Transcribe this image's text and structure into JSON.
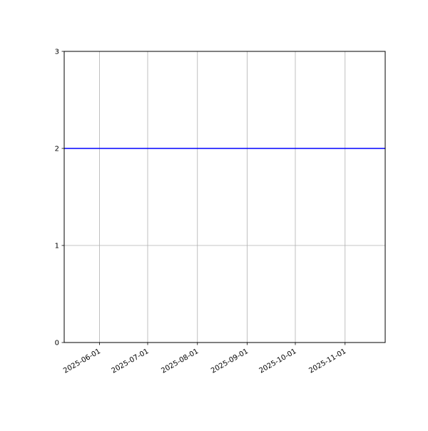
{
  "chart_data": {
    "type": "line",
    "title": "",
    "xlabel": "",
    "ylabel": "",
    "xlim": [
      "2025-05-10",
      "2025-11-26"
    ],
    "ylim": [
      0,
      3
    ],
    "grid": true,
    "x_ticks": [
      "2025-06-01",
      "2025-07-01",
      "2025-08-01",
      "2025-09-01",
      "2025-10-01",
      "2025-11-01"
    ],
    "y_ticks": [
      "0",
      "1",
      "2",
      "3"
    ],
    "series": [
      {
        "color": "#0000ff",
        "x": [
          "2025-05-10",
          "2025-11-26"
        ],
        "y": [
          2,
          2
        ]
      }
    ],
    "grid_color": "#b0b0b0"
  }
}
